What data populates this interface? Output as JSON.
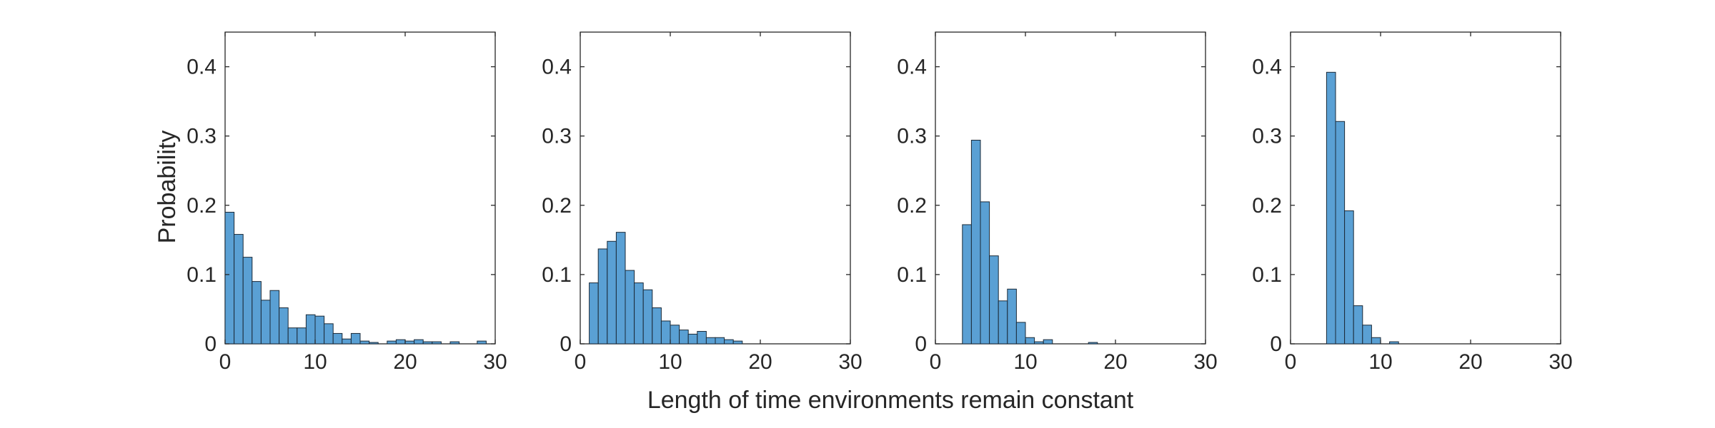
{
  "figure": {
    "xlabel": "Length of time environments remain constant",
    "ylabel": "Probability"
  },
  "colors": {
    "bar_fill": "#5aa0d4",
    "bar_stroke": "#1b2a38",
    "axis": "#262626"
  },
  "chart_data": [
    {
      "type": "bar",
      "xlim": [
        0,
        30
      ],
      "ylim": [
        0,
        0.45
      ],
      "xticks": [
        "0",
        "10",
        "20",
        "30"
      ],
      "yticks": [
        "0",
        "0.1",
        "0.2",
        "0.3",
        "0.4"
      ],
      "bin_width": 1,
      "bin_starts": [
        0,
        1,
        2,
        3,
        4,
        5,
        6,
        7,
        8,
        9,
        10,
        11,
        12,
        13,
        14,
        15,
        16,
        17,
        18,
        19,
        20,
        21,
        22,
        23,
        24,
        25,
        26,
        27,
        28,
        29
      ],
      "values": [
        0.19,
        0.158,
        0.125,
        0.09,
        0.063,
        0.077,
        0.052,
        0.023,
        0.023,
        0.042,
        0.04,
        0.029,
        0.015,
        0.007,
        0.015,
        0.004,
        0.002,
        0,
        0.004,
        0.006,
        0.004,
        0.006,
        0.003,
        0.003,
        0,
        0.003,
        0,
        0,
        0.004,
        0
      ]
    },
    {
      "type": "bar",
      "xlim": [
        0,
        30
      ],
      "ylim": [
        0,
        0.45
      ],
      "xticks": [
        "0",
        "10",
        "20",
        "30"
      ],
      "yticks": [
        "0",
        "0.1",
        "0.2",
        "0.3",
        "0.4"
      ],
      "bin_width": 1,
      "bin_starts": [
        1,
        2,
        3,
        4,
        5,
        6,
        7,
        8,
        9,
        10,
        11,
        12,
        13,
        14,
        15,
        16,
        17
      ],
      "values": [
        0.088,
        0.137,
        0.148,
        0.161,
        0.106,
        0.088,
        0.078,
        0.052,
        0.033,
        0.027,
        0.02,
        0.014,
        0.018,
        0.009,
        0.009,
        0.006,
        0.004
      ]
    },
    {
      "type": "bar",
      "xlim": [
        0,
        30
      ],
      "ylim": [
        0,
        0.45
      ],
      "xticks": [
        "0",
        "10",
        "20",
        "30"
      ],
      "yticks": [
        "0",
        "0.1",
        "0.2",
        "0.3",
        "0.4"
      ],
      "bin_width": 1,
      "bin_starts": [
        3,
        4,
        5,
        6,
        7,
        8,
        9,
        10,
        11,
        12,
        13,
        14,
        15,
        16,
        17
      ],
      "values": [
        0.172,
        0.294,
        0.205,
        0.127,
        0.062,
        0.079,
        0.031,
        0.009,
        0.003,
        0.006,
        0,
        0,
        0,
        0,
        0.002
      ]
    },
    {
      "type": "bar",
      "xlim": [
        0,
        30
      ],
      "ylim": [
        0,
        0.45
      ],
      "xticks": [
        "0",
        "10",
        "20",
        "30"
      ],
      "yticks": [
        "0",
        "0.1",
        "0.2",
        "0.3",
        "0.4"
      ],
      "bin_width": 1,
      "bin_starts": [
        4,
        5,
        6,
        7,
        8,
        9,
        10,
        11
      ],
      "values": [
        0.392,
        0.321,
        0.192,
        0.055,
        0.027,
        0.009,
        0,
        0.003
      ]
    }
  ]
}
